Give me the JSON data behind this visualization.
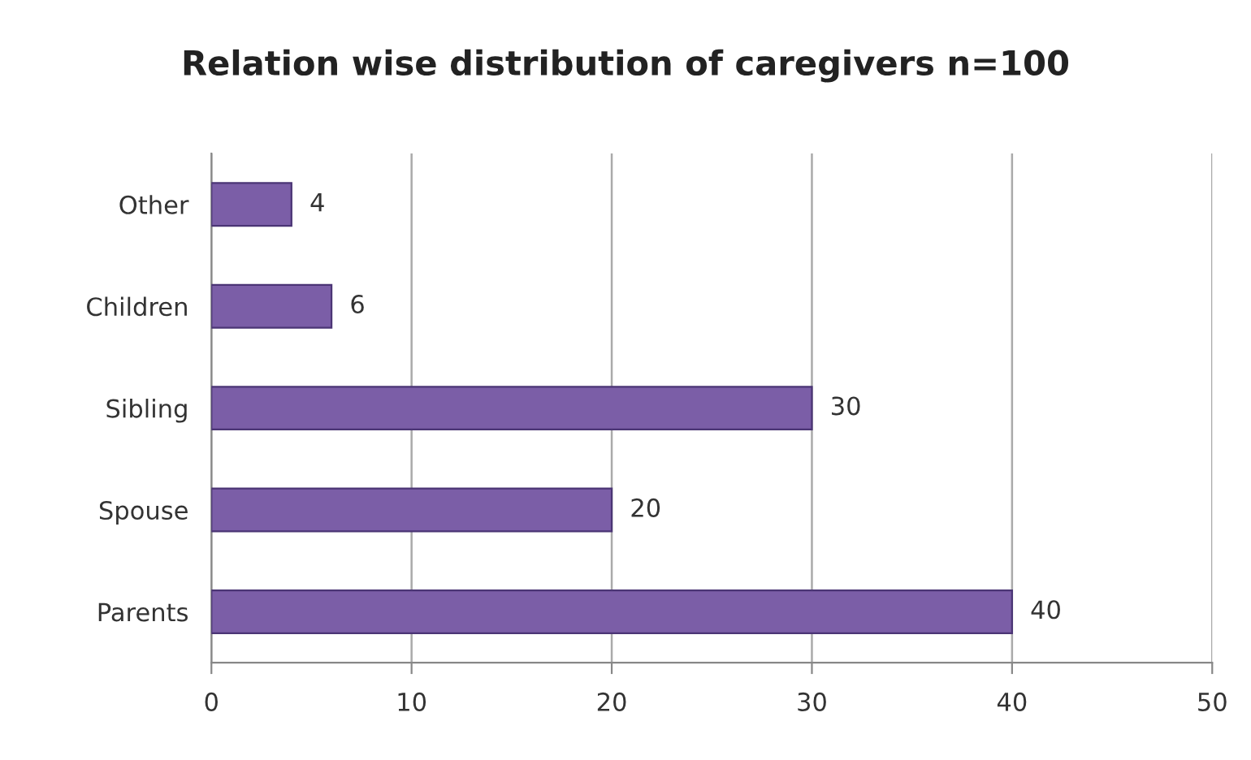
{
  "chart_data": {
    "type": "bar",
    "title": "Relation wise distribution of caregivers n=100",
    "orientation": "horizontal",
    "categories": [
      "Other",
      "Children",
      "Sibling",
      "Spouse",
      "Parents"
    ],
    "values": [
      4,
      6,
      30,
      20,
      40
    ],
    "color": "#7b5ea7",
    "xlim": [
      0,
      50
    ],
    "xticks": [
      0,
      10,
      20,
      30,
      40,
      50
    ],
    "grid": "x",
    "data_labels": true
  }
}
